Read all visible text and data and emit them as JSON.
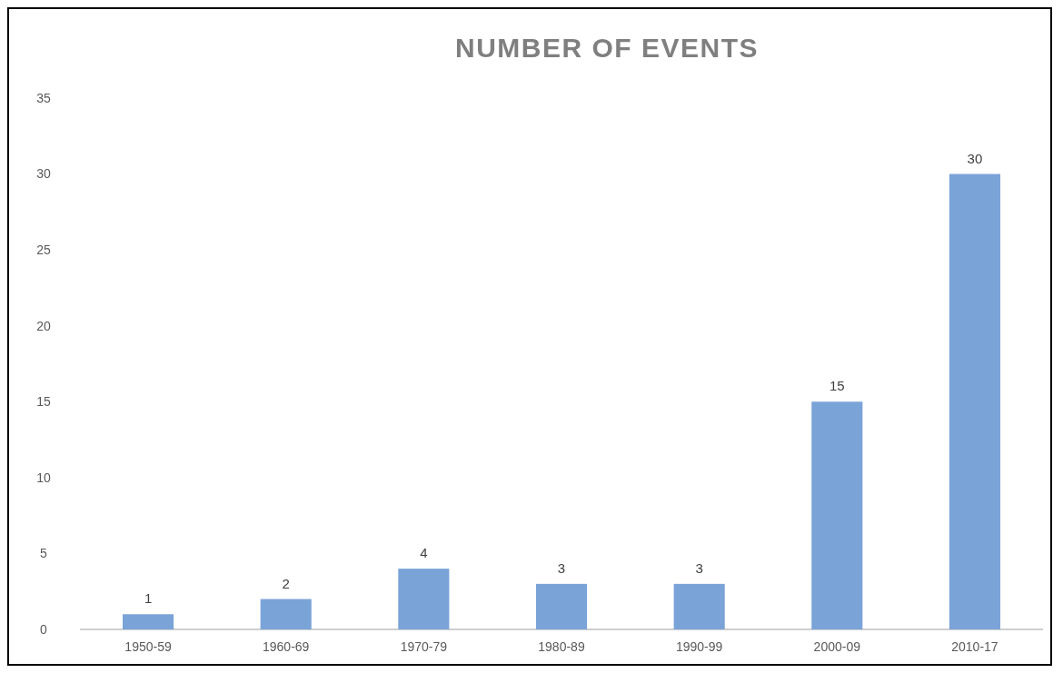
{
  "chart_data": {
    "type": "bar",
    "title": "NUMBER OF EVENTS",
    "categories": [
      "1950-59",
      "1960-69",
      "1970-79",
      "1980-89",
      "1990-99",
      "2000-09",
      "2010-17"
    ],
    "values": [
      1,
      2,
      4,
      3,
      3,
      15,
      30
    ],
    "color": "#7aa3d8",
    "ylim": [
      0,
      35
    ],
    "yticks": [
      0,
      5,
      10,
      15,
      20,
      25,
      30,
      35
    ],
    "grid": false,
    "data_labels": true
  }
}
